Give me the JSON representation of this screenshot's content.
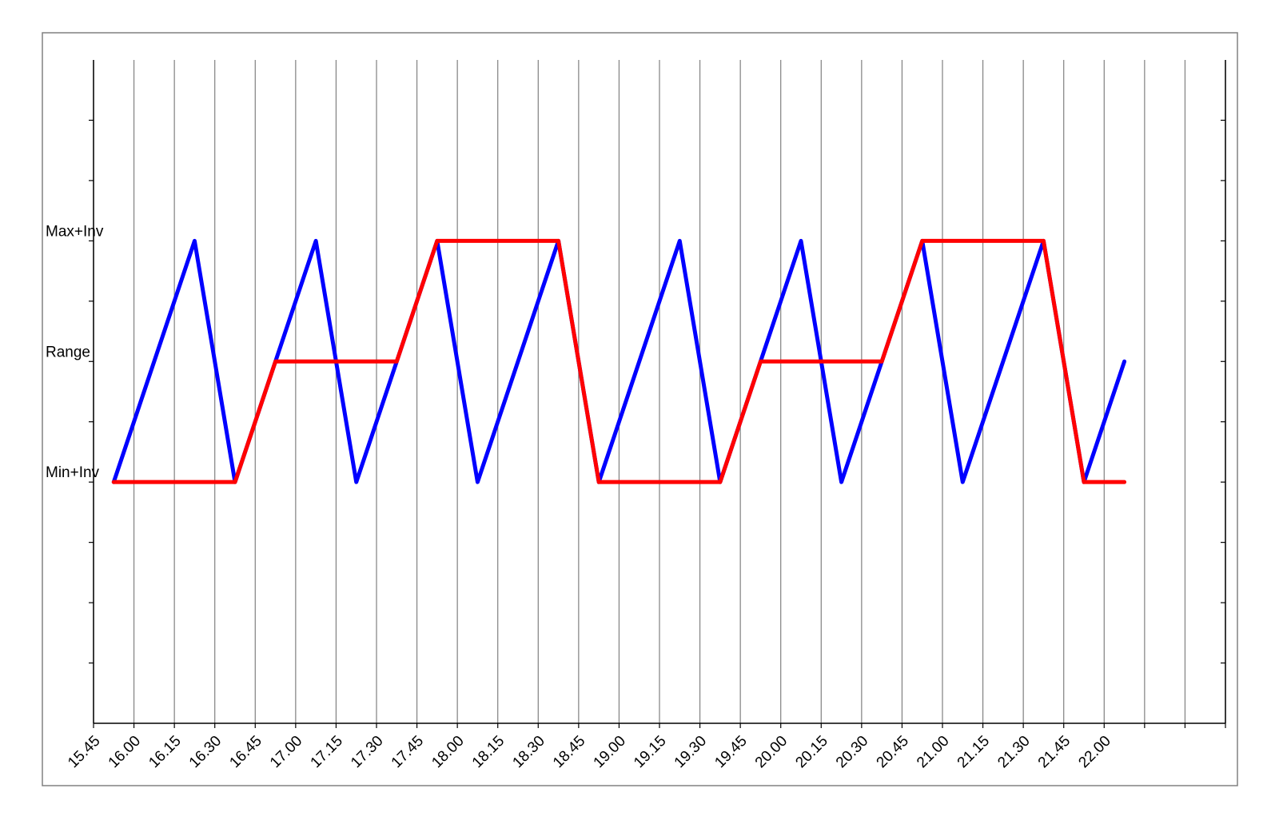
{
  "chart_data": {
    "type": "line",
    "x_ticks": [
      "15.45",
      "16.00",
      "16.15",
      "16.30",
      "16.45",
      "17.00",
      "17.15",
      "17.30",
      "17.45",
      "18.00",
      "18.15",
      "18.30",
      "18.45",
      "19.00",
      "19.15",
      "19.30",
      "19.45",
      "20.00",
      "20.15",
      "20.30",
      "20.45",
      "21.00",
      "21.15",
      "21.30",
      "21.45",
      "22.00",
      "",
      ""
    ],
    "y_ticks": [
      {
        "label": "Max+Inv",
        "value": 2
      },
      {
        "label": "Range",
        "value": 1
      },
      {
        "label": "Min+Inv",
        "value": 0
      }
    ],
    "ylim": [
      -2,
      3.5
    ],
    "xlim": [
      0,
      28
    ],
    "grid": "vertical",
    "colors": {
      "blue": "#0000ff",
      "red": "#ff0000"
    },
    "series": [
      {
        "color": "#0000ff",
        "points": [
          [
            0.5,
            0
          ],
          [
            2.5,
            2
          ],
          [
            3.5,
            0
          ],
          [
            5.5,
            2
          ],
          [
            6.5,
            0
          ],
          [
            8.5,
            2
          ],
          [
            9.5,
            0
          ],
          [
            11.5,
            2
          ],
          [
            12.5,
            0
          ],
          [
            14.5,
            2
          ],
          [
            15.5,
            0
          ],
          [
            17.5,
            2
          ],
          [
            18.5,
            0
          ],
          [
            20.5,
            2
          ],
          [
            21.5,
            0
          ],
          [
            23.5,
            2
          ],
          [
            24.5,
            0
          ],
          [
            25.5,
            1
          ]
        ]
      },
      {
        "color": "#ff0000",
        "points": [
          [
            0.5,
            0
          ],
          [
            3.5,
            0
          ],
          [
            4.5,
            1
          ],
          [
            7.5,
            1
          ],
          [
            8.5,
            2
          ],
          [
            11.5,
            2
          ],
          [
            12.5,
            0
          ],
          [
            15.5,
            0
          ],
          [
            16.5,
            1
          ],
          [
            19.5,
            1
          ],
          [
            20.5,
            2
          ],
          [
            23.5,
            2
          ],
          [
            24.5,
            0
          ],
          [
            25.5,
            0
          ]
        ]
      }
    ]
  }
}
